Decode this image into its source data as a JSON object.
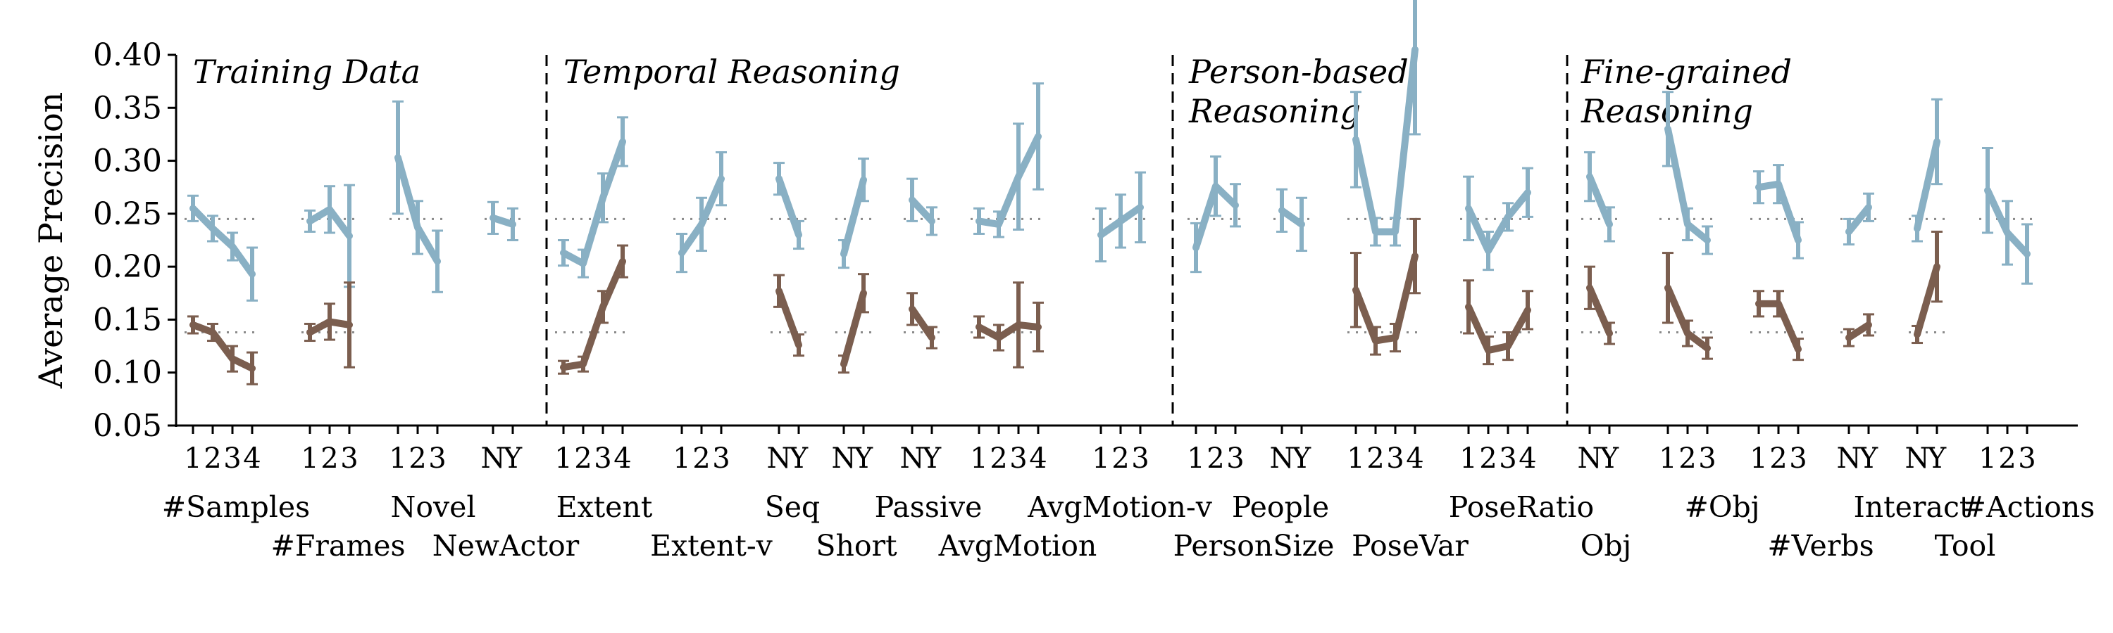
{
  "chart_data": {
    "type": "line",
    "ylabel": "Average Precision",
    "ylim": [
      0.05,
      0.4
    ],
    "yticks": [
      "0.05",
      "0.10",
      "0.15",
      "0.20",
      "0.25",
      "0.30",
      "0.35",
      "0.40"
    ],
    "grid": false,
    "colors": {
      "blue": "#89b0c4",
      "brown": "#7b5e4f",
      "baseline": "#8a8a8a"
    },
    "baselines": {
      "blue": 0.245,
      "brown": 0.138
    },
    "sections": [
      {
        "title": "Training Data"
      },
      {
        "title": "Temporal Reasoning"
      },
      {
        "title": "Person-based Reasoning"
      },
      {
        "title": "Fine-grained Reasoning"
      }
    ],
    "groups": [
      {
        "factor": "#Samples",
        "labels": [
          "1",
          "2",
          "3",
          "4"
        ],
        "blue": [
          [
            0.255,
            0.012
          ],
          [
            0.236,
            0.012
          ],
          [
            0.219,
            0.013
          ],
          [
            0.193,
            0.025
          ]
        ],
        "brown": [
          [
            0.145,
            0.008
          ],
          [
            0.138,
            0.008
          ],
          [
            0.113,
            0.012
          ],
          [
            0.104,
            0.015
          ]
        ]
      },
      {
        "factor": "#Frames",
        "labels": [
          "1",
          "2",
          "3"
        ],
        "blue": [
          [
            0.243,
            0.01
          ],
          [
            0.254,
            0.022
          ],
          [
            0.229,
            0.048
          ]
        ],
        "brown": [
          [
            0.138,
            0.008
          ],
          [
            0.148,
            0.017
          ],
          [
            0.145,
            0.04
          ]
        ]
      },
      {
        "factor": "Novel",
        "labels": [
          "1",
          "2",
          "3"
        ],
        "blue": [
          [
            0.303,
            0.053
          ],
          [
            0.237,
            0.025
          ],
          [
            0.205,
            0.029
          ]
        ],
        "brown": []
      },
      {
        "factor": "NewActor",
        "labels": [
          "N",
          "Y"
        ],
        "blue": [
          [
            0.246,
            0.015
          ],
          [
            0.24,
            0.015
          ]
        ],
        "brown": []
      },
      {
        "factor": "Extent",
        "labels": [
          "1",
          "2",
          "3",
          "4"
        ],
        "blue": [
          [
            0.213,
            0.012
          ],
          [
            0.203,
            0.013
          ],
          [
            0.265,
            0.023
          ],
          [
            0.318,
            0.023
          ]
        ],
        "brown": [
          [
            0.105,
            0.006
          ],
          [
            0.108,
            0.007
          ],
          [
            0.162,
            0.015
          ],
          [
            0.205,
            0.015
          ]
        ]
      },
      {
        "factor": "Extent-v",
        "labels": [
          "1",
          "2",
          "3"
        ],
        "blue": [
          [
            0.213,
            0.018
          ],
          [
            0.24,
            0.025
          ],
          [
            0.283,
            0.025
          ]
        ],
        "brown": []
      },
      {
        "factor": "Seq",
        "labels": [
          "N",
          "Y"
        ],
        "blue": [
          [
            0.283,
            0.015
          ],
          [
            0.23,
            0.013
          ]
        ],
        "brown": [
          [
            0.177,
            0.015
          ],
          [
            0.126,
            0.01
          ]
        ]
      },
      {
        "factor": "Short",
        "labels": [
          "N",
          "Y"
        ],
        "blue": [
          [
            0.212,
            0.013
          ],
          [
            0.282,
            0.02
          ]
        ],
        "brown": [
          [
            0.108,
            0.008
          ],
          [
            0.175,
            0.018
          ]
        ]
      },
      {
        "factor": "Passive",
        "labels": [
          "N",
          "Y"
        ],
        "blue": [
          [
            0.263,
            0.02
          ],
          [
            0.243,
            0.013
          ]
        ],
        "brown": [
          [
            0.16,
            0.015
          ],
          [
            0.133,
            0.01
          ]
        ]
      },
      {
        "factor": "AvgMotion",
        "labels": [
          "1",
          "2",
          "3",
          "4"
        ],
        "blue": [
          [
            0.243,
            0.012
          ],
          [
            0.24,
            0.012
          ],
          [
            0.285,
            0.05
          ],
          [
            0.323,
            0.05
          ]
        ],
        "brown": [
          [
            0.143,
            0.01
          ],
          [
            0.133,
            0.012
          ],
          [
            0.145,
            0.04
          ],
          [
            0.143,
            0.023
          ]
        ]
      },
      {
        "factor": "AvgMotion-v",
        "labels": [
          "1",
          "2",
          "3"
        ],
        "blue": [
          [
            0.23,
            0.025
          ],
          [
            0.243,
            0.025
          ],
          [
            0.256,
            0.033
          ]
        ],
        "brown": []
      },
      {
        "factor": "People",
        "labels": [
          "1",
          "2",
          "3"
        ],
        "blue": [
          [
            0.218,
            0.023
          ],
          [
            0.276,
            0.028
          ],
          [
            0.258,
            0.02
          ]
        ],
        "brown": []
      },
      {
        "factor": "PersonSize",
        "labels": [
          "N",
          "Y"
        ],
        "blue": [
          [
            0.253,
            0.02
          ],
          [
            0.24,
            0.025
          ]
        ],
        "brown": []
      },
      {
        "factor": "PoseVar",
        "labels": [
          "1",
          "2",
          "3",
          "4"
        ],
        "blue": [
          [
            0.32,
            0.045
          ],
          [
            0.233,
            0.013
          ],
          [
            0.233,
            0.013
          ],
          [
            0.405,
            0.08
          ]
        ],
        "brown": [
          [
            0.178,
            0.035
          ],
          [
            0.13,
            0.013
          ],
          [
            0.133,
            0.013
          ],
          [
            0.21,
            0.035
          ]
        ]
      },
      {
        "factor": "PoseRatio",
        "labels": [
          "1",
          "2",
          "3",
          "4"
        ],
        "blue": [
          [
            0.255,
            0.03
          ],
          [
            0.215,
            0.018
          ],
          [
            0.247,
            0.013
          ],
          [
            0.27,
            0.023
          ]
        ],
        "brown": [
          [
            0.162,
            0.025
          ],
          [
            0.121,
            0.013
          ],
          [
            0.125,
            0.013
          ],
          [
            0.159,
            0.018
          ]
        ]
      },
      {
        "factor": "Obj",
        "labels": [
          "N",
          "Y"
        ],
        "blue": [
          [
            0.285,
            0.023
          ],
          [
            0.24,
            0.016
          ]
        ],
        "brown": [
          [
            0.18,
            0.02
          ],
          [
            0.137,
            0.01
          ]
        ]
      },
      {
        "factor": "#Obj",
        "labels": [
          "1",
          "2",
          "3"
        ],
        "blue": [
          [
            0.33,
            0.035
          ],
          [
            0.24,
            0.015
          ],
          [
            0.225,
            0.013
          ]
        ],
        "brown": [
          [
            0.18,
            0.033
          ],
          [
            0.137,
            0.012
          ],
          [
            0.123,
            0.01
          ]
        ]
      },
      {
        "factor": "#Verbs",
        "labels": [
          "1",
          "2",
          "3"
        ],
        "blue": [
          [
            0.275,
            0.015
          ],
          [
            0.278,
            0.018
          ],
          [
            0.225,
            0.017
          ]
        ],
        "brown": [
          [
            0.165,
            0.012
          ],
          [
            0.165,
            0.012
          ],
          [
            0.122,
            0.01
          ]
        ]
      },
      {
        "factor": "Interact",
        "labels": [
          "N",
          "Y"
        ],
        "blue": [
          [
            0.233,
            0.012
          ],
          [
            0.256,
            0.013
          ]
        ],
        "brown": [
          [
            0.133,
            0.008
          ],
          [
            0.145,
            0.01
          ]
        ]
      },
      {
        "factor": "Tool",
        "labels": [
          "N",
          "Y"
        ],
        "blue": [
          [
            0.236,
            0.012
          ],
          [
            0.318,
            0.04
          ]
        ],
        "brown": [
          [
            0.136,
            0.008
          ],
          [
            0.2,
            0.033
          ]
        ]
      },
      {
        "factor": "#Actions",
        "labels": [
          "1",
          "2",
          "3"
        ],
        "blue": [
          [
            0.272,
            0.04
          ],
          [
            0.232,
            0.03
          ],
          [
            0.212,
            0.028
          ]
        ],
        "brown": []
      }
    ]
  }
}
